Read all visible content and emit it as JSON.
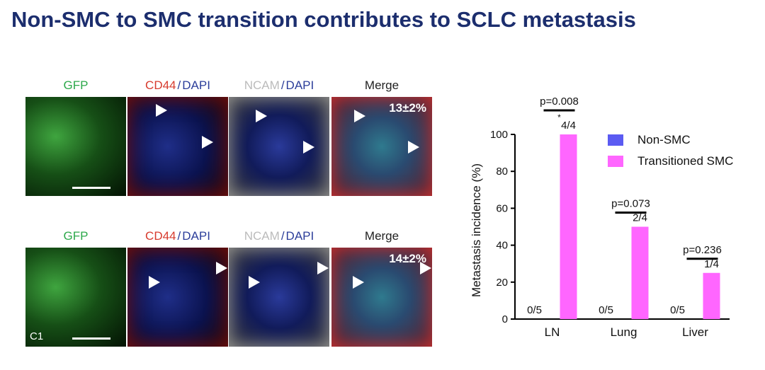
{
  "title": "Non-SMC to SMC transition contributes to SCLC metastasis",
  "image_rows": [
    {
      "headers": [
        [
          "GFP"
        ],
        [
          "CD44",
          "/",
          "DAPI"
        ],
        [
          "NCAM",
          "/",
          "DAPI"
        ],
        [
          "Merge"
        ]
      ],
      "quantification": "13±2%"
    },
    {
      "headers": [
        [
          "GFP"
        ],
        [
          "CD44",
          "/",
          "DAPI"
        ],
        [
          "NCAM",
          "/",
          "DAPI"
        ],
        [
          "Merge"
        ]
      ],
      "quantification": "14±2%",
      "tag": "C1"
    }
  ],
  "chart_data": {
    "type": "bar",
    "y_label": "Metastasis incidence (%)",
    "categories": [
      "LN",
      "Lung",
      "Liver"
    ],
    "series": [
      {
        "name": "Non-SMC",
        "color": "#5b5bf2",
        "values": [
          0,
          0,
          0
        ],
        "value_labels": [
          "0/5",
          "0/5",
          "0/5"
        ]
      },
      {
        "name": "Transitioned SMC",
        "color": "#ff66ff",
        "values": [
          100,
          50,
          25
        ],
        "value_labels": [
          "4/4",
          "2/4",
          "1/4"
        ]
      }
    ],
    "p_values": [
      "p=0.008",
      "p=0.073",
      "p=0.236"
    ],
    "significance": [
      {
        "category": "LN",
        "text": "*"
      }
    ],
    "ylim": [
      0,
      100
    ],
    "yticks": [
      0,
      20,
      40,
      60,
      80,
      100
    ],
    "legend": "top-right"
  }
}
